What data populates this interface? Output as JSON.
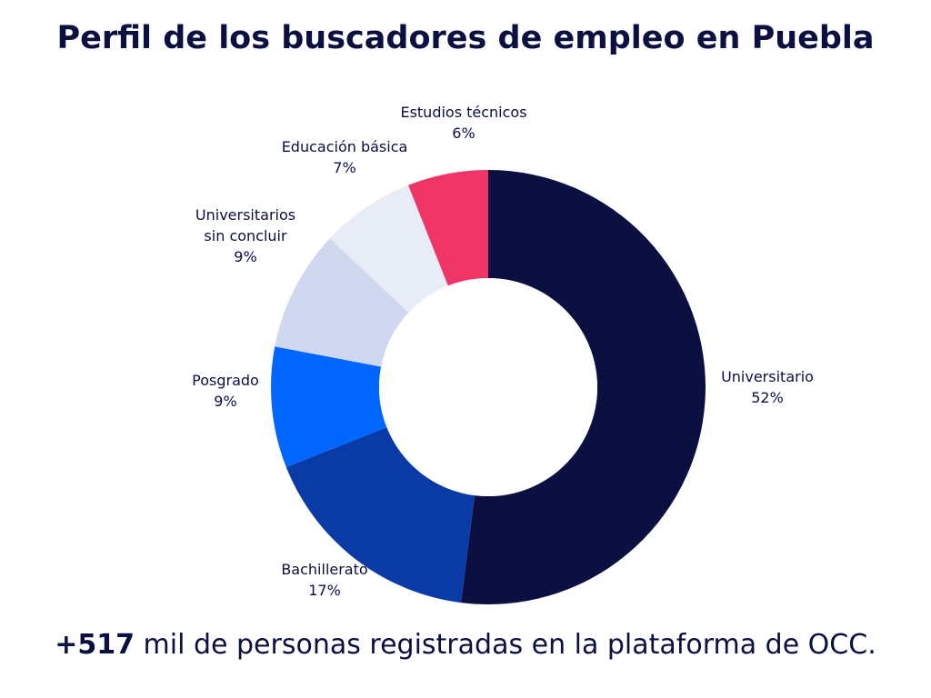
{
  "chart_data": {
    "type": "pie",
    "variant": "donut",
    "title": "Perfil de los buscadores de empleo en Puebla",
    "slices": [
      {
        "label": [
          "Universitario"
        ],
        "value": 52,
        "value_text": "52%",
        "color": "#0b1040"
      },
      {
        "label": [
          "Bachillerato"
        ],
        "value": 17,
        "value_text": "17%",
        "color": "#0a3aa6"
      },
      {
        "label": [
          "Posgrado"
        ],
        "value": 9,
        "value_text": "9%",
        "color": "#0066ff"
      },
      {
        "label": [
          "Universitarios",
          "sin concluir"
        ],
        "value": 9,
        "value_text": "9%",
        "color": "#cfd8ef"
      },
      {
        "label": [
          "Educación básica"
        ],
        "value": 7,
        "value_text": "7%",
        "color": "#e8ecf7"
      },
      {
        "label": [
          "Estudios técnicos"
        ],
        "value": 6,
        "value_text": "6%",
        "color": "#ef3566"
      }
    ],
    "start": "12 o'clock",
    "direction": "clockwise"
  },
  "footer": {
    "highlight": "+517",
    "rest": " mil de personas registradas en la plataforma de OCC."
  }
}
